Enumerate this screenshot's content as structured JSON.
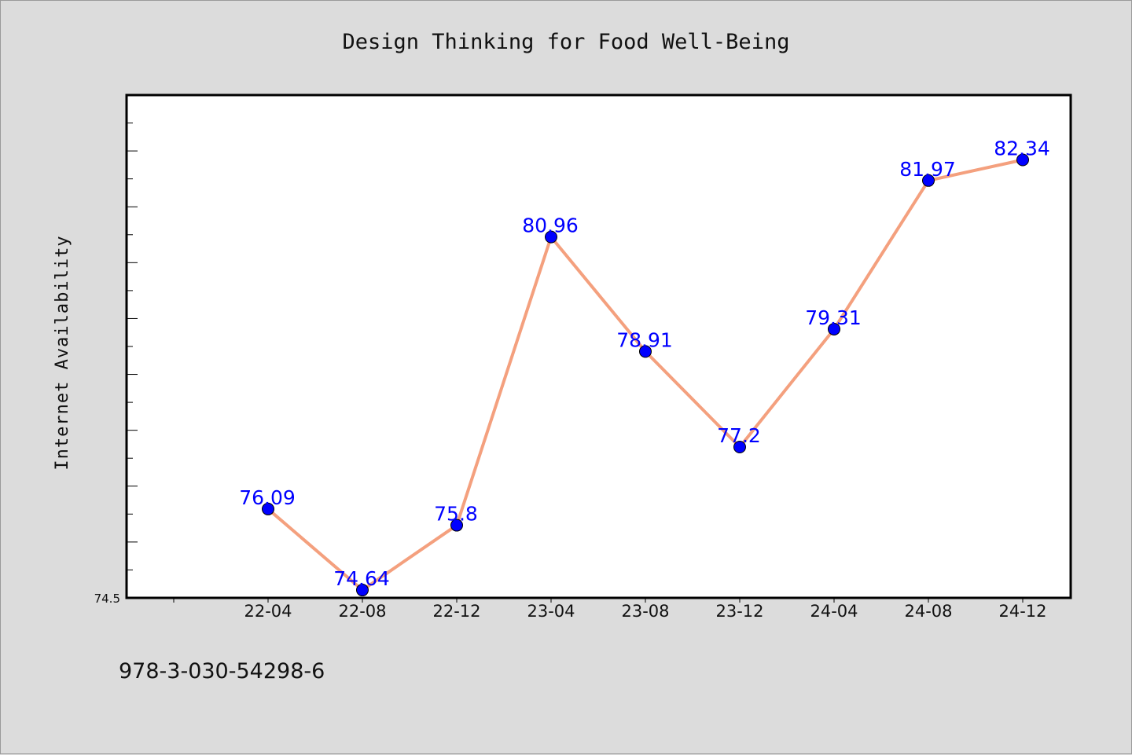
{
  "chart_data": {
    "type": "line",
    "title": "Design Thinking for Food Well-Being",
    "xlabel": "",
    "ylabel": "Internet Availability",
    "categories": [
      "22-04",
      "22-08",
      "22-12",
      "23-04",
      "23-08",
      "23-12",
      "24-04",
      "24-08",
      "24-12"
    ],
    "series": [
      {
        "values": [
          76.09,
          74.64,
          75.8,
          80.96,
          78.91,
          77.2,
          79.31,
          81.97,
          82.34
        ]
      }
    ],
    "ylim": [
      74.5,
      83.5
    ],
    "yticks_labeled": [
      "74.5"
    ],
    "grid": false,
    "line_color": "#f4a07e",
    "marker_color": "#0000ff",
    "label_color": "#0000ff"
  },
  "footer": {
    "isbn": "978-3-030-54298-6"
  }
}
